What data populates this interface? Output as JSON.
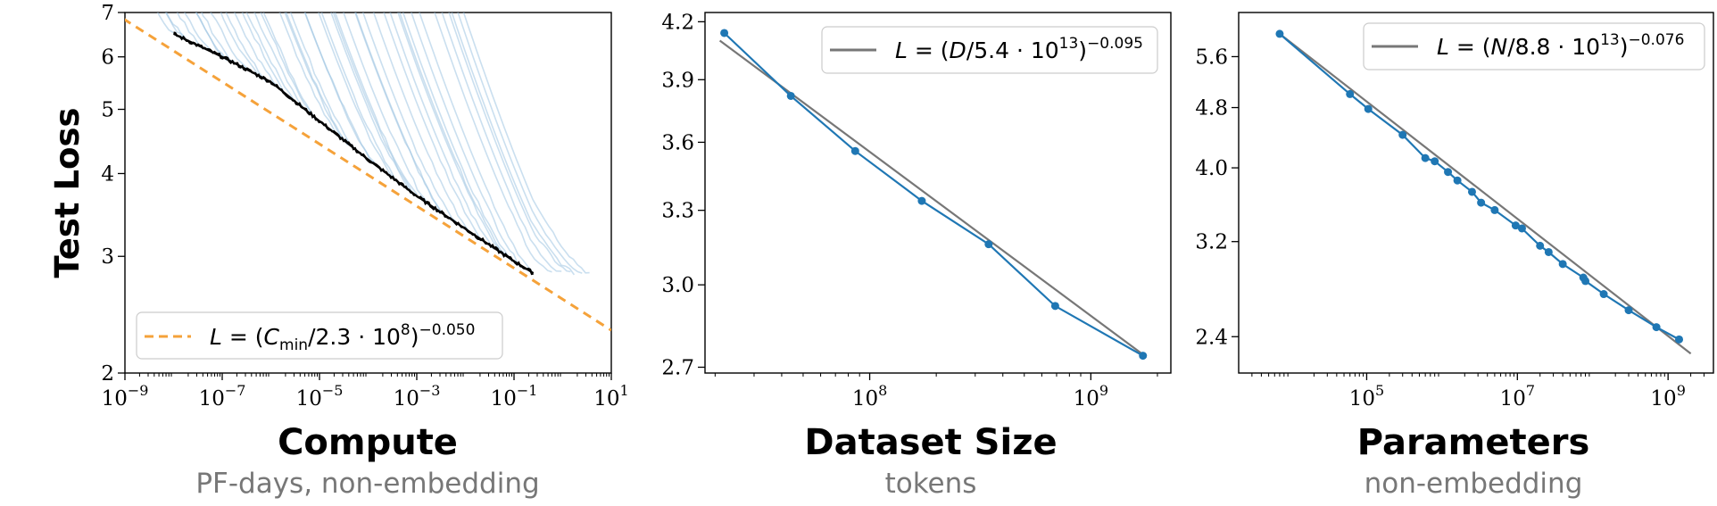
{
  "chart_data": [
    {
      "type": "line",
      "xlabel": "Compute",
      "xsubtitle": "PF-days, non-embedding",
      "ylabel": "Test Loss",
      "xscale": "log",
      "yscale": "log",
      "xlim": [
        1e-09,
        10
      ],
      "ylim": [
        2,
        7
      ],
      "xticks": [
        "10^-9",
        "10^-7",
        "10^-5",
        "10^-3",
        "10^-1",
        "10^1"
      ],
      "yticks": [
        "2",
        "3",
        "4",
        "5",
        "6",
        "7"
      ],
      "legend_position": "bottom-left",
      "series": [
        {
          "name": "L = (C_min/2.3 · 10^8)^-0.050",
          "style": "dashed",
          "color": "#f5a23a",
          "x": [
            5e-10,
            10
          ],
          "y": [
            7.05,
            2.32
          ]
        },
        {
          "name": "",
          "style": "solid",
          "color": "#000000",
          "x": [
            1e-08,
            1e-07,
            1e-06,
            1e-05,
            0.0001,
            0.001,
            0.01,
            0.1,
            0.25
          ],
          "y": [
            6.5,
            6.0,
            5.5,
            4.8,
            4.2,
            3.7,
            3.3,
            2.95,
            2.83
          ]
        },
        {
          "name": "",
          "style": "solid",
          "color": "#9ec4e2",
          "x": [],
          "y": []
        }
      ]
    },
    {
      "type": "line",
      "xlabel": "Dataset Size",
      "xsubtitle": "tokens",
      "xscale": "log",
      "yscale": "log",
      "xlim": [
        18000000.0,
        2300000000.0
      ],
      "ylim": [
        2.68,
        4.25
      ],
      "xticks": [
        "10^8",
        "10^9"
      ],
      "yticks": [
        "2.7",
        "3.0",
        "3.3",
        "3.6",
        "3.9",
        "4.2"
      ],
      "legend_position": "top-right",
      "series": [
        {
          "name": "L = (D/5.4 · 10^13)^-0.095",
          "style": "solid",
          "color": "#777777",
          "x": [
            21000000.0,
            1750000000.0
          ],
          "y": [
            4.1,
            2.74
          ]
        },
        {
          "name": "",
          "style": "solid-markers",
          "color": "#1f77b4",
          "x": [
            22000000.0,
            44000000.0,
            86000000.0,
            172000000.0,
            345000000.0,
            690000000.0,
            1720000000.0
          ],
          "y": [
            4.14,
            3.82,
            3.56,
            3.34,
            3.16,
            2.92,
            2.74
          ]
        }
      ]
    },
    {
      "type": "line",
      "xlabel": "Parameters",
      "xsubtitle": "non-embedding",
      "xscale": "log",
      "yscale": "log",
      "xlim": [
        2000.0,
        4000000000.0
      ],
      "ylim": [
        2.15,
        6.4
      ],
      "xticks": [
        "10^5",
        "10^7",
        "10^9"
      ],
      "yticks": [
        "2.4",
        "3.2",
        "4.0",
        "4.8",
        "5.6"
      ],
      "legend_position": "top-right",
      "series": [
        {
          "name": "L = (N/8.8 · 10^13)^-0.076",
          "style": "solid",
          "color": "#777777",
          "x": [
            7000.0,
            2000000000.0
          ],
          "y": [
            6.0,
            2.28
          ]
        },
        {
          "name": "",
          "style": "solid-markers",
          "color": "#1f77b4",
          "x": [
            7000.0,
            60000.0,
            105000.0,
            300000.0,
            600000.0,
            800000.0,
            1200000.0,
            1600000.0,
            2500000.0,
            3300000.0,
            5000000.0,
            9500000.0,
            11500000.0,
            20000000.0,
            26000000.0,
            40000000.0,
            75000000.0,
            80000000.0,
            140000000.0,
            300000000.0,
            700000000.0,
            1400000000.0
          ],
          "y": [
            6.0,
            5.0,
            4.78,
            4.42,
            4.12,
            4.08,
            3.95,
            3.85,
            3.72,
            3.6,
            3.52,
            3.36,
            3.33,
            3.16,
            3.1,
            2.99,
            2.87,
            2.84,
            2.73,
            2.6,
            2.47,
            2.38
          ]
        }
      ]
    }
  ]
}
